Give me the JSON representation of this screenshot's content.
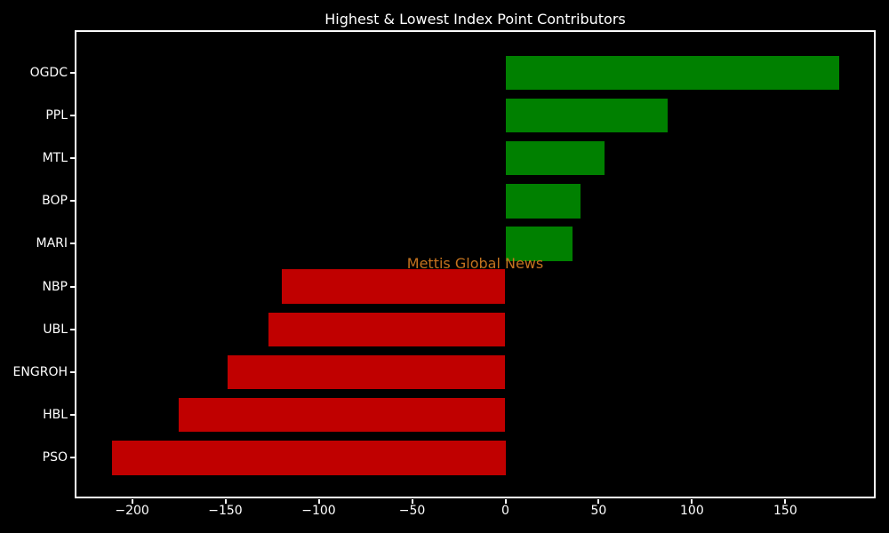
{
  "chart_data": {
    "type": "bar",
    "orientation": "horizontal",
    "title": "Highest & Lowest Index Point Contributors",
    "categories": [
      "OGDC",
      "PPL",
      "MTL",
      "BOP",
      "MARI",
      "NBP",
      "UBL",
      "ENGROH",
      "HBL",
      "PSO"
    ],
    "values": [
      179,
      87,
      53,
      40,
      36,
      -120,
      -127,
      -149,
      -175,
      -211
    ],
    "xlabel": "",
    "ylabel": "",
    "xlim": [
      -229.8,
      198.4
    ],
    "x_ticks": [
      {
        "label": "−200",
        "value": -200
      },
      {
        "label": "−150",
        "value": -150
      },
      {
        "label": "−100",
        "value": -100
      },
      {
        "label": "−50",
        "value": -50
      },
      {
        "label": "0",
        "value": 0
      },
      {
        "label": "50",
        "value": 50
      },
      {
        "label": "100",
        "value": 100
      },
      {
        "label": "150",
        "value": 150
      }
    ],
    "grid": false,
    "legend_position": "none",
    "colors": {
      "positive_bar": "#008000",
      "negative_bar": "#c00000",
      "background": "#000000",
      "text": "#ffffff"
    }
  },
  "watermark": {
    "text": "Mettis Global News",
    "color": "#c4731f"
  }
}
